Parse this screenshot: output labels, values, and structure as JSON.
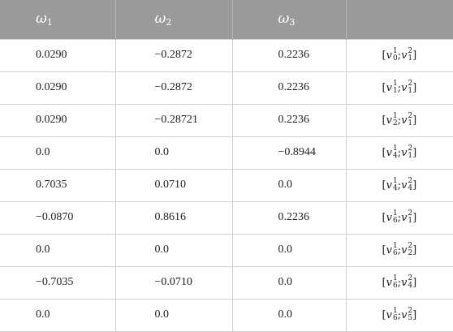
{
  "table": {
    "headers": [
      {
        "sym": "ω",
        "sub": "1"
      },
      {
        "sym": "ω",
        "sub": "2"
      },
      {
        "sym": "ω",
        "sub": "3"
      },
      {
        "sym": "",
        "sub": ""
      }
    ],
    "rows": [
      {
        "w1": "0.0290",
        "w2": "−0.2872",
        "w3": "0.2236",
        "v": {
          "a_sup": "1",
          "a_sub": "0",
          "b_sup": "2",
          "b_sub": "1"
        }
      },
      {
        "w1": "0.0290",
        "w2": "−0.2872",
        "w3": "0.2236",
        "v": {
          "a_sup": "1",
          "a_sub": "1",
          "b_sup": "2",
          "b_sub": "1"
        }
      },
      {
        "w1": "0.0290",
        "w2": "−0.28721",
        "w3": "0.2236",
        "v": {
          "a_sup": "1",
          "a_sub": "2",
          "b_sup": "2",
          "b_sub": "1"
        }
      },
      {
        "w1": "0.0",
        "w2": "0.0",
        "w3": "−0.8944",
        "v": {
          "a_sup": "1",
          "a_sub": "4",
          "b_sup": "2",
          "b_sub": "1"
        }
      },
      {
        "w1": "0.7035",
        "w2": "0.0710",
        "w3": "0.0",
        "v": {
          "a_sup": "1",
          "a_sub": "4",
          "b_sup": "2",
          "b_sub": "4"
        }
      },
      {
        "w1": "−0.0870",
        "w2": "0.8616",
        "w3": "0.2236",
        "v": {
          "a_sup": "1",
          "a_sub": "6",
          "b_sup": "2",
          "b_sub": "1"
        }
      },
      {
        "w1": "0.0",
        "w2": "0.0",
        "w3": "0.0",
        "v": {
          "a_sup": "1",
          "a_sub": "6",
          "b_sup": "2",
          "b_sub": "2"
        }
      },
      {
        "w1": "−0.7035",
        "w2": "−0.0710",
        "w3": "0.0",
        "v": {
          "a_sup": "1",
          "a_sub": "6",
          "b_sup": "2",
          "b_sub": "4"
        }
      },
      {
        "w1": "0.0",
        "w2": "0.0",
        "w3": "0.0",
        "v": {
          "a_sup": "1",
          "a_sub": "6",
          "b_sup": "2",
          "b_sub": "5"
        }
      }
    ],
    "vector_symbol": "v",
    "open_bracket": "[",
    "separator": ";",
    "close_bracket": "]",
    "colors": {
      "header_bg": "#9a9a9a",
      "header_text": "#ffffff",
      "grid": "#cfcfcf",
      "body_text": "#222222"
    }
  }
}
